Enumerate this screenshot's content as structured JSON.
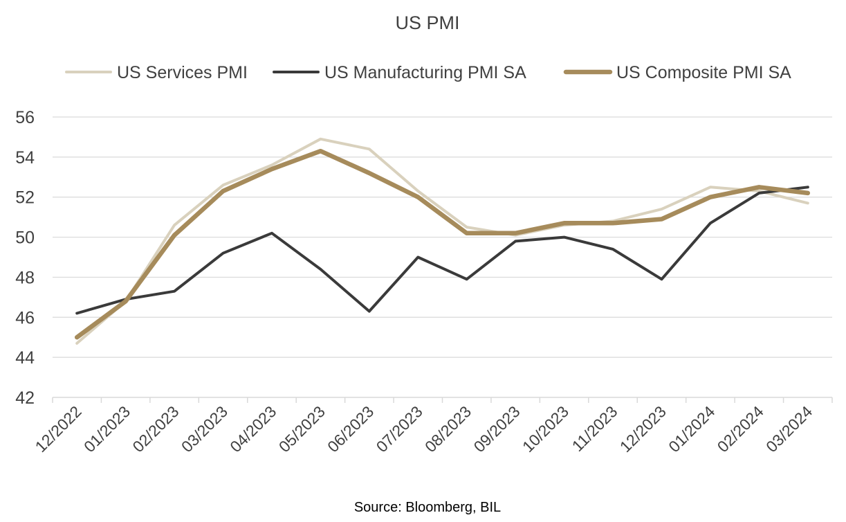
{
  "chart_data": {
    "type": "line",
    "title": "US PMI",
    "xlabel": "",
    "ylabel": "",
    "categories": [
      "12/2022",
      "01/2023",
      "02/2023",
      "03/2023",
      "04/2023",
      "05/2023",
      "06/2023",
      "07/2023",
      "08/2023",
      "09/2023",
      "10/2023",
      "11/2023",
      "12/2023",
      "01/2024",
      "02/2024",
      "03/2024"
    ],
    "ylim": [
      42,
      56
    ],
    "yticks": [
      "42",
      "44",
      "46",
      "48",
      "50",
      "52",
      "54",
      "56"
    ],
    "grid": true,
    "legend_position": "top",
    "series": [
      {
        "name": "US Services PMI",
        "color": "#d9d1bd",
        "values": [
          44.7,
          46.8,
          50.6,
          52.6,
          53.6,
          54.9,
          54.4,
          52.3,
          50.5,
          50.1,
          50.6,
          50.8,
          51.4,
          52.5,
          52.3,
          51.7
        ]
      },
      {
        "name": "US Manufacturing PMI SA",
        "color": "#3a3a3a",
        "values": [
          46.2,
          46.9,
          47.3,
          49.2,
          50.2,
          48.4,
          46.3,
          49.0,
          47.9,
          49.8,
          50.0,
          49.4,
          47.9,
          50.7,
          52.2,
          52.5
        ]
      },
      {
        "name": "US Composite PMI SA",
        "color": "#a68b5b",
        "values": [
          45.0,
          46.8,
          50.1,
          52.3,
          53.4,
          54.3,
          53.2,
          52.0,
          50.2,
          50.2,
          50.7,
          50.7,
          50.9,
          52.0,
          52.5,
          52.2
        ]
      }
    ],
    "source": "Source: Bloomberg, BIL"
  }
}
